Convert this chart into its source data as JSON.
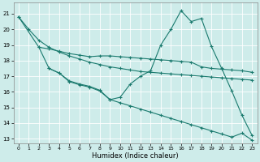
{
  "xlabel": "Humidex (Indice chaleur)",
  "xlim": [
    -0.5,
    23.5
  ],
  "ylim": [
    12.7,
    21.7
  ],
  "yticks": [
    13,
    14,
    15,
    16,
    17,
    18,
    19,
    20,
    21
  ],
  "xticks": [
    0,
    1,
    2,
    3,
    4,
    5,
    6,
    7,
    8,
    9,
    10,
    11,
    12,
    13,
    14,
    15,
    16,
    17,
    18,
    19,
    20,
    21,
    22,
    23
  ],
  "bg_color": "#ceecea",
  "line_color": "#1a7a6e",
  "grid_color": "#ffffff",
  "line_A_x": [
    0,
    1,
    2,
    3,
    4,
    5,
    6,
    7,
    8,
    9,
    10,
    11,
    12,
    13,
    14,
    15,
    16,
    17,
    18,
    19,
    20,
    21,
    22,
    23
  ],
  "line_A_y": [
    20.8,
    20.0,
    19.3,
    18.85,
    18.55,
    18.3,
    18.1,
    17.9,
    17.75,
    17.6,
    17.5,
    17.4,
    17.3,
    17.25,
    17.2,
    17.15,
    17.1,
    17.05,
    17.0,
    16.95,
    16.9,
    16.85,
    16.8,
    16.75
  ],
  "line_B_x": [
    0,
    2,
    3,
    4,
    5,
    6,
    7,
    8,
    9,
    10,
    11,
    12,
    13,
    14,
    15,
    16,
    17,
    18,
    19,
    20,
    21,
    22,
    23
  ],
  "line_B_y": [
    20.8,
    18.85,
    18.75,
    18.6,
    18.45,
    18.35,
    18.25,
    18.3,
    18.3,
    18.25,
    18.2,
    18.15,
    18.1,
    18.05,
    18.0,
    17.95,
    17.9,
    17.6,
    17.5,
    17.45,
    17.4,
    17.35,
    17.25
  ],
  "line_C_x": [
    2,
    3,
    4,
    5,
    6,
    7,
    8,
    9,
    10,
    11,
    12,
    13,
    14,
    15,
    16,
    17,
    18,
    19,
    20,
    21,
    22,
    23
  ],
  "line_C_y": [
    18.85,
    17.5,
    17.2,
    16.7,
    16.5,
    16.35,
    16.1,
    15.5,
    15.65,
    16.5,
    17.0,
    17.35,
    19.0,
    20.0,
    21.2,
    20.5,
    20.7,
    18.9,
    17.5,
    16.05,
    14.5,
    13.2
  ],
  "line_D_x": [
    3,
    4,
    5,
    6,
    7,
    8,
    9,
    10,
    11,
    12,
    13,
    14,
    15,
    16,
    17,
    18,
    19,
    20,
    21,
    22,
    23
  ],
  "line_D_y": [
    17.5,
    17.2,
    16.65,
    16.45,
    16.3,
    16.05,
    15.5,
    15.3,
    15.1,
    14.9,
    14.7,
    14.5,
    14.3,
    14.1,
    13.9,
    13.7,
    13.5,
    13.3,
    13.1,
    13.35,
    12.9
  ]
}
